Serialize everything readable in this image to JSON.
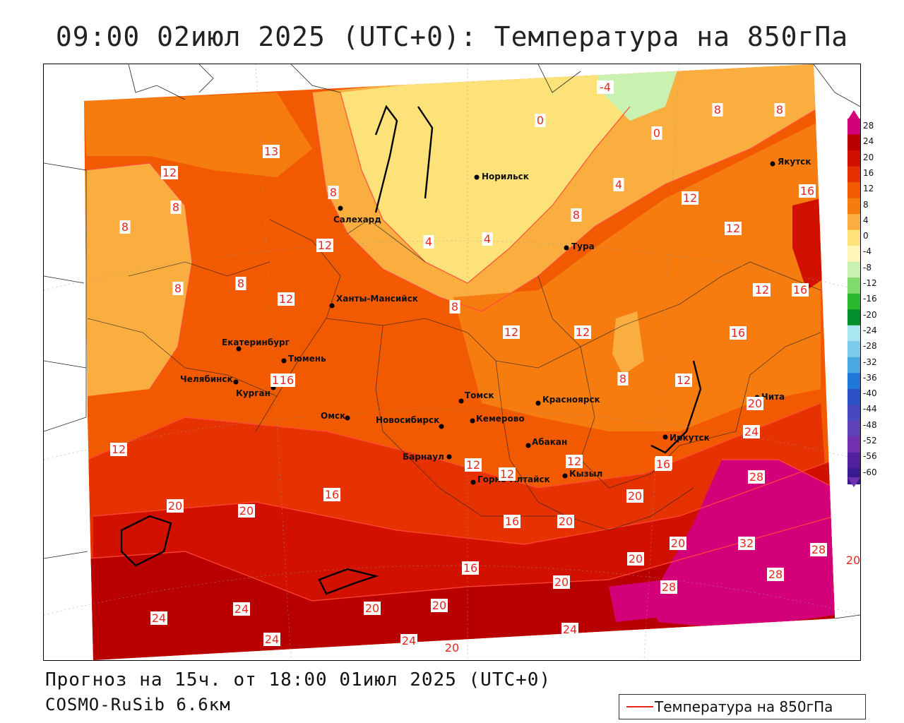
{
  "title": "09:00 02июл 2025 (UTC+0): Температура на 850гПа",
  "footer": {
    "forecast": "Прогноз на 15ч. от 18:00 01июл 2025 (UTC+0)",
    "model": "COSMO-RuSib 6.6км"
  },
  "legend": {
    "label": "Температура на 850гПа",
    "line_color": "#e8281e"
  },
  "colorbar": {
    "ticks": [
      "28",
      "24",
      "20",
      "16",
      "12",
      "8",
      "4",
      "0",
      "-4",
      "-8",
      "-12",
      "-16",
      "-20",
      "-24",
      "-28",
      "-32",
      "-36",
      "-40",
      "-44",
      "-48",
      "-52",
      "-56",
      "-60"
    ],
    "colors": [
      "#d4007a",
      "#b80000",
      "#d11000",
      "#e63200",
      "#f25a00",
      "#f77c10",
      "#fbae40",
      "#fde27a",
      "#fff5b8",
      "#c9f2b0",
      "#7fdc6a",
      "#2cb82c",
      "#008f2a",
      "#a8e6f0",
      "#7ccbea",
      "#4aa8e0",
      "#1e78d6",
      "#2d52c8",
      "#4848c0",
      "#6040b8",
      "#7030b0",
      "#5020a0",
      "#3a1a90"
    ]
  },
  "cities": [
    {
      "name": "Салехард"
    },
    {
      "name": "Норильск"
    },
    {
      "name": "Якутск"
    },
    {
      "name": "Тура"
    },
    {
      "name": "Ханты-Мансийск"
    },
    {
      "name": "Екатеринбург"
    },
    {
      "name": "Тюмень"
    },
    {
      "name": "Челябинск"
    },
    {
      "name": "Курган"
    },
    {
      "name": "Томск"
    },
    {
      "name": "Красноярск"
    },
    {
      "name": "Омск"
    },
    {
      "name": "Новосибирск"
    },
    {
      "name": "Кемерово"
    },
    {
      "name": "Абакан"
    },
    {
      "name": "Иркутск"
    },
    {
      "name": "Чита"
    },
    {
      "name": "Барнаул"
    },
    {
      "name": "Горно-Алтайск"
    },
    {
      "name": "Кызыл"
    }
  ],
  "contour_labels": [
    "-4",
    "0",
    "0",
    "8",
    "8",
    "13",
    "12",
    "8",
    "8",
    "8",
    "8",
    "12",
    "4",
    "8",
    "4",
    "4",
    "8",
    "12",
    "12",
    "16",
    "12",
    "8",
    "12",
    "12",
    "12",
    "16",
    "12",
    "16",
    "8",
    "12",
    "16",
    "16",
    "20",
    "24",
    "20",
    "20",
    "28",
    "16",
    "20",
    "20",
    "32",
    "28",
    "20",
    "16",
    "20",
    "24",
    "24",
    "28",
    "24",
    "20",
    "20",
    "24",
    "20",
    "24",
    "20",
    "28",
    "20",
    "12",
    "12",
    "16",
    "16",
    "12",
    "12",
    "16"
  ]
}
